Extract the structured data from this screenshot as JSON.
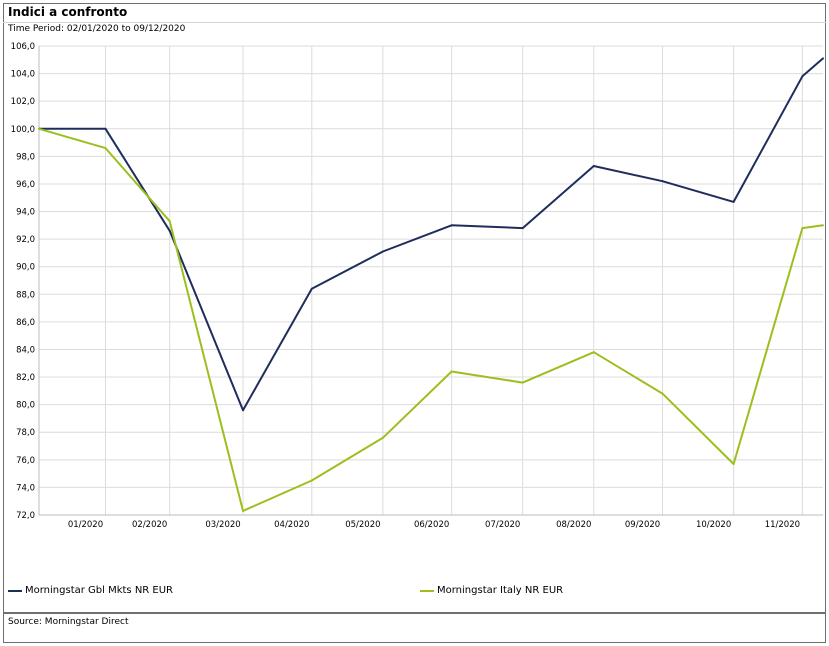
{
  "chart_data": {
    "type": "line",
    "title": "Indici a confronto",
    "subtitle": "Time Period: 02/01/2020 to 09/12/2020",
    "x_tick_labels": [
      "01/2020",
      "02/2020",
      "03/2020",
      "04/2020",
      "05/2020",
      "06/2020",
      "07/2020",
      "08/2020",
      "09/2020",
      "10/2020",
      "11/2020"
    ],
    "y_tick_labels": [
      "72,0",
      "74,0",
      "76,0",
      "78,0",
      "80,0",
      "82,0",
      "84,0",
      "86,0",
      "88,0",
      "90,0",
      "92,0",
      "94,0",
      "96,0",
      "98,0",
      "100,0",
      "102,0",
      "104,0",
      "106,0"
    ],
    "ylim": [
      72,
      106
    ],
    "x": [
      "02/01/2020",
      "31/01/2020",
      "28/02/2020",
      "31/03/2020",
      "30/04/2020",
      "31/05/2020",
      "30/06/2020",
      "31/07/2020",
      "31/08/2020",
      "30/09/2020",
      "31/10/2020",
      "30/11/2020",
      "09/12/2020"
    ],
    "series": [
      {
        "name": "Morningstar Gbl Mkts NR EUR",
        "color": "#1f2d5c",
        "values": [
          100.0,
          100.0,
          92.6,
          79.6,
          88.4,
          91.1,
          93.0,
          92.8,
          97.3,
          96.2,
          94.7,
          103.8,
          105.1
        ]
      },
      {
        "name": "Morningstar Italy NR EUR",
        "color": "#9cbf1f",
        "values": [
          100.0,
          98.6,
          93.3,
          72.3,
          74.5,
          77.6,
          82.4,
          81.6,
          83.8,
          80.8,
          75.7,
          92.8,
          93.0
        ]
      }
    ],
    "grid": true,
    "legend_position": "bottom"
  },
  "footer": {
    "source": "Source: Morningstar Direct"
  }
}
